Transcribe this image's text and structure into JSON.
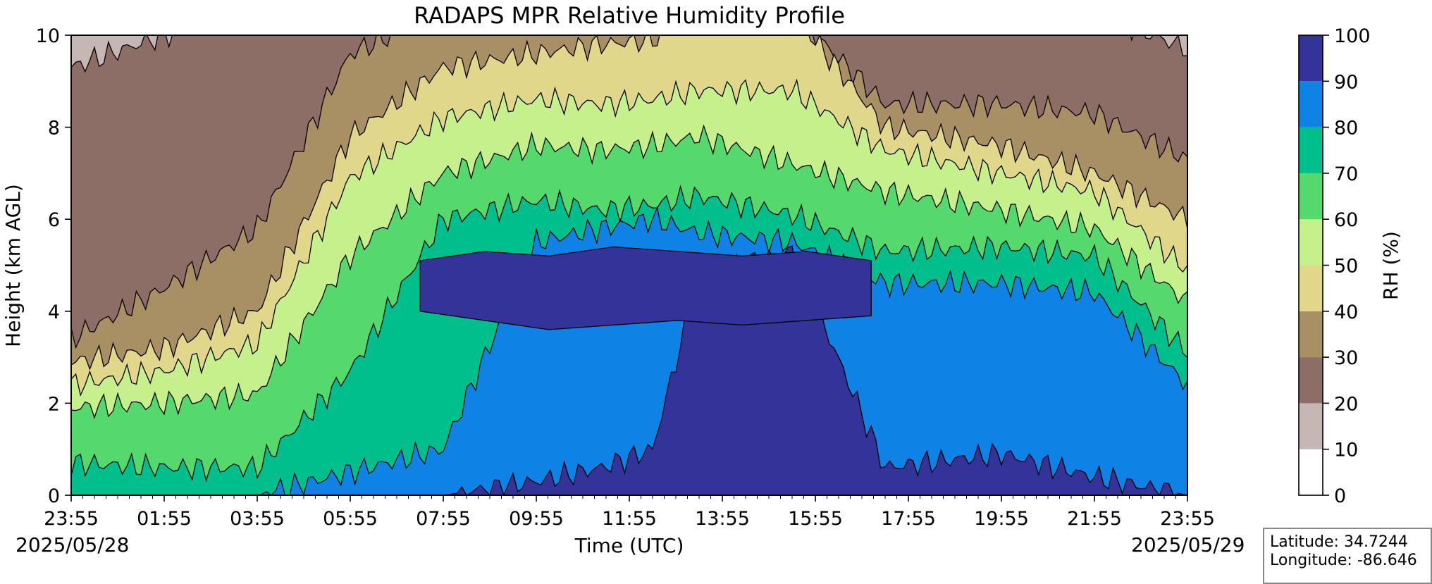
{
  "chart_data": {
    "type": "heatmap",
    "title": "RADAPS MPR Relative Humidity Profile",
    "xlabel": "Time (UTC)",
    "ylabel": "Height (km AGL)",
    "x_ticks": [
      "23:55",
      "01:55",
      "03:55",
      "05:55",
      "07:55",
      "09:55",
      "11:55",
      "13:55",
      "15:55",
      "17:55",
      "19:55",
      "21:55",
      "23:55"
    ],
    "x_range_hours": [
      0,
      24
    ],
    "y_ticks": [
      0,
      2,
      4,
      6,
      8,
      10
    ],
    "ylim": [
      0,
      10
    ],
    "start_date": "2025/05/28",
    "end_date": "2025/05/29",
    "colorbar": {
      "label": "RH (%)",
      "levels": [
        0,
        10,
        20,
        30,
        40,
        50,
        60,
        70,
        80,
        90,
        100
      ],
      "colors": [
        "#ffffff",
        "#c6b6b4",
        "#8d6e66",
        "#a88f64",
        "#e0d78a",
        "#c6f08c",
        "#55d96d",
        "#00bf8c",
        "#0f82e6",
        "#333399"
      ]
    },
    "profile_times": [
      0,
      2,
      4,
      6,
      8,
      10,
      11.4,
      12.5,
      13.5,
      15.5,
      17.5,
      20,
      22,
      24
    ],
    "level_heights_km": {
      "10": [
        0.0,
        0.0,
        0.0,
        0.0,
        0.1,
        0.2,
        0.2,
        0.3,
        0.0,
        0.0,
        0.0,
        0.0,
        0.0,
        0.0
      ],
      "20": [
        9.3,
        10.0,
        10.5,
        10.5,
        10.5,
        10.5,
        10.5,
        10.5,
        10.5,
        10.5,
        10.5,
        10.5,
        10.5,
        9.7
      ],
      "30": [
        3.4,
        4.5,
        5.8,
        9.6,
        10.5,
        10.5,
        10.5,
        10.5,
        10.5,
        10.5,
        8.5,
        8.5,
        8.3,
        7.3
      ],
      "40": [
        2.9,
        3.2,
        4.0,
        7.8,
        9.3,
        9.6,
        9.8,
        9.9,
        10.5,
        10.5,
        8.0,
        7.6,
        7.0,
        6.0
      ],
      "50": [
        2.4,
        2.7,
        3.3,
        6.9,
        8.2,
        8.6,
        8.5,
        8.6,
        8.8,
        8.8,
        7.5,
        7.0,
        6.6,
        4.9
      ],
      "60": [
        1.9,
        2.0,
        2.2,
        5.2,
        7.0,
        7.6,
        7.5,
        7.6,
        7.8,
        7.2,
        6.6,
        6.2,
        5.8,
        4.2
      ],
      "70": [
        0.7,
        0.6,
        0.6,
        2.7,
        6.0,
        6.4,
        6.2,
        6.3,
        6.5,
        6.1,
        5.3,
        5.4,
        5.2,
        3.1
      ],
      "80": [
        0.0,
        0.0,
        0.0,
        0.5,
        1.0,
        5.5,
        5.8,
        6.0,
        5.7,
        5.5,
        4.6,
        4.6,
        4.4,
        2.4
      ],
      "90": [
        0.0,
        0.0,
        0.0,
        0.0,
        0.0,
        0.3,
        0.6,
        1.0,
        4.8,
        5.3,
        0.6,
        0.9,
        0.4,
        0.0
      ],
      "100": [
        0.0,
        0.0,
        0.0,
        0.0,
        0.0,
        0.0,
        0.0,
        0.0,
        0.0,
        0.0,
        0.0,
        0.0,
        0.0,
        0.0
      ]
    },
    "dry_core_90": {
      "time_start": 7.5,
      "time_end": 17.2,
      "bottom_km": [
        4.0,
        3.8,
        3.6,
        3.7,
        3.8,
        3.7,
        3.8,
        3.9
      ],
      "top_km": [
        5.1,
        5.3,
        5.2,
        5.4,
        5.3,
        5.2,
        5.3,
        5.1
      ]
    }
  },
  "info_box": {
    "latitude": "Latitude: 34.7244",
    "longitude": "Longitude: -86.646"
  }
}
